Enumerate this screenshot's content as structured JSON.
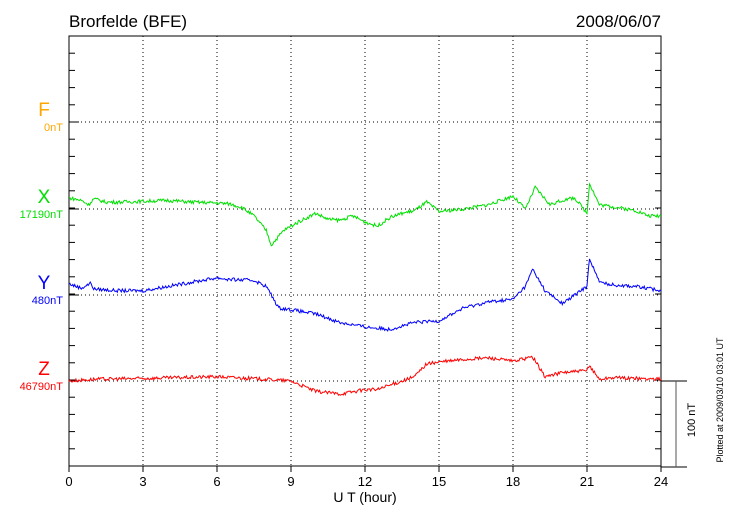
{
  "chart_data": {
    "type": "line",
    "title": "Brorfelde (BFE)",
    "date": "2008/06/07",
    "xlabel": "U T (hour)",
    "xlim": [
      0,
      24
    ],
    "xticks": [
      "0",
      "3",
      "6",
      "9",
      "12",
      "15",
      "18",
      "21",
      "24"
    ],
    "grid": true,
    "scale_bar_label": "100 nT",
    "scale_bar_nT": 100,
    "footer": "Plotted at 2009/03/10 03:01 UT",
    "series": [
      {
        "name": "F",
        "baseline_label": "0nT",
        "color": "#ffa500",
        "points": []
      },
      {
        "name": "X",
        "baseline_label": "17190nT",
        "color": "#00e000",
        "points": [
          [
            0,
            13
          ],
          [
            0.5,
            10
          ],
          [
            0.8,
            5
          ],
          [
            1,
            12
          ],
          [
            1.5,
            8
          ],
          [
            2,
            8
          ],
          [
            3,
            9
          ],
          [
            4,
            10
          ],
          [
            5,
            8
          ],
          [
            6,
            7
          ],
          [
            6.5,
            6
          ],
          [
            7,
            2
          ],
          [
            7.5,
            -8
          ],
          [
            8,
            -25
          ],
          [
            8.2,
            -42
          ],
          [
            8.7,
            -25
          ],
          [
            9.3,
            -15
          ],
          [
            10,
            -5
          ],
          [
            10.5,
            -12
          ],
          [
            11,
            -13
          ],
          [
            11.5,
            -8
          ],
          [
            12,
            -15
          ],
          [
            12.5,
            -20
          ],
          [
            13,
            -10
          ],
          [
            13.5,
            -5
          ],
          [
            14,
            -2
          ],
          [
            14.5,
            8
          ],
          [
            15,
            -3
          ],
          [
            16,
            0
          ],
          [
            17,
            5
          ],
          [
            17.5,
            10
          ],
          [
            18,
            15
          ],
          [
            18.5,
            0
          ],
          [
            18.9,
            25
          ],
          [
            19.5,
            5
          ],
          [
            20,
            10
          ],
          [
            20.5,
            13
          ],
          [
            21,
            -5
          ],
          [
            21.1,
            30
          ],
          [
            21.5,
            5
          ],
          [
            22,
            3
          ],
          [
            23,
            -2
          ],
          [
            23.5,
            -8
          ],
          [
            24,
            -8
          ]
        ]
      },
      {
        "name": "Y",
        "baseline_label": "480nT",
        "color": "#0000ff",
        "points": [
          [
            0,
            13
          ],
          [
            0.5,
            8
          ],
          [
            0.9,
            14
          ],
          [
            1,
            7
          ],
          [
            2,
            5
          ],
          [
            3,
            5
          ],
          [
            4,
            10
          ],
          [
            5,
            15
          ],
          [
            6,
            20
          ],
          [
            6.5,
            18
          ],
          [
            7.5,
            17
          ],
          [
            8,
            10
          ],
          [
            8.5,
            -15
          ],
          [
            9,
            -17
          ],
          [
            10,
            -22
          ],
          [
            11,
            -32
          ],
          [
            12,
            -37
          ],
          [
            13,
            -40
          ],
          [
            14,
            -32
          ],
          [
            15,
            -30
          ],
          [
            16,
            -15
          ],
          [
            17,
            -8
          ],
          [
            18,
            -5
          ],
          [
            18.5,
            10
          ],
          [
            18.8,
            30
          ],
          [
            19.3,
            5
          ],
          [
            20,
            -10
          ],
          [
            21,
            10
          ],
          [
            21.1,
            43
          ],
          [
            21.5,
            15
          ],
          [
            22,
            12
          ],
          [
            23,
            10
          ],
          [
            24,
            5
          ]
        ]
      },
      {
        "name": "Z",
        "baseline_label": "46790nT",
        "color": "#ff0000",
        "points": [
          [
            0,
            0
          ],
          [
            1,
            2
          ],
          [
            3,
            3
          ],
          [
            6,
            5
          ],
          [
            8,
            2
          ],
          [
            9,
            0
          ],
          [
            10,
            -12
          ],
          [
            11,
            -15
          ],
          [
            12,
            -10
          ],
          [
            12.5,
            -10
          ],
          [
            13,
            -5
          ],
          [
            14,
            5
          ],
          [
            14.5,
            20
          ],
          [
            15,
            22
          ],
          [
            16,
            25
          ],
          [
            17,
            27
          ],
          [
            18,
            23
          ],
          [
            18.8,
            28
          ],
          [
            19.3,
            5
          ],
          [
            20,
            10
          ],
          [
            21,
            12
          ],
          [
            21.1,
            18
          ],
          [
            21.5,
            2
          ],
          [
            22,
            4
          ],
          [
            23,
            3
          ],
          [
            24,
            2
          ]
        ]
      }
    ]
  }
}
